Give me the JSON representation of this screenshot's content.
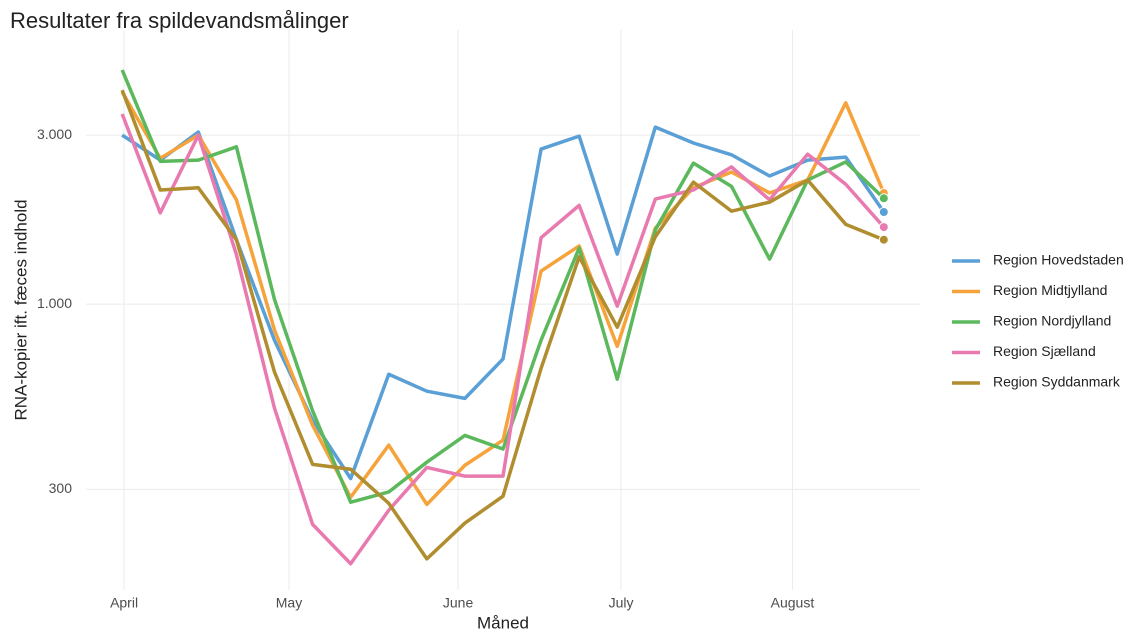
{
  "chart_data": {
    "type": "line",
    "title": "Resultater fra spildevandsmålinger",
    "x_label": "Måned",
    "y_label": "RNA-kopier ift. fæces indhold",
    "x": [
      0,
      1,
      2,
      3,
      4,
      5,
      6,
      7,
      8,
      9,
      10,
      11,
      12,
      13,
      14,
      15,
      16,
      17,
      18,
      19,
      20
    ],
    "xlim": [
      -0.95,
      20.95
    ],
    "xticks": [
      {
        "value": 0.05,
        "label": "April"
      },
      {
        "value": 4.38,
        "label": "May"
      },
      {
        "value": 8.82,
        "label": "June"
      },
      {
        "value": 13.1,
        "label": "July"
      },
      {
        "value": 17.6,
        "label": "August"
      }
    ],
    "ylim": [
      156,
      5940
    ],
    "y_log": true,
    "yticks": [
      300,
      {
        "value": 1000,
        "label": "1.000"
      },
      {
        "value": 3000,
        "label": "3.000"
      }
    ],
    "grid": true,
    "legend_position": "right",
    "end_markers": true,
    "series": [
      {
        "name": "Region Hovedstaden",
        "color": "#5a9fd5",
        "values": [
          3000,
          2550,
          3060,
          1520,
          790,
          470,
          322,
          634,
          568,
          542,
          700,
          2740,
          2980,
          1385,
          3160,
          2850,
          2640,
          2300,
          2550,
          2600,
          1820
        ]
      },
      {
        "name": "Region Midtjylland",
        "color": "#f6a33b",
        "values": [
          3970,
          2580,
          3000,
          1970,
          845,
          455,
          285,
          400,
          272,
          351,
          413,
          1240,
          1460,
          760,
          1640,
          2130,
          2360,
          2060,
          2240,
          3700,
          2060
        ]
      },
      {
        "name": "Region Nordjylland",
        "color": "#5cb85c",
        "values": [
          4580,
          2530,
          2550,
          2780,
          1030,
          500,
          276,
          295,
          358,
          426,
          390,
          791,
          1440,
          614,
          1620,
          2500,
          2150,
          1340,
          2240,
          2520,
          1990
        ]
      },
      {
        "name": "Region Sjælland",
        "color": "#e97aaf",
        "values": [
          3440,
          1810,
          3000,
          1380,
          508,
          239,
          185,
          262,
          346,
          327,
          327,
          1540,
          1900,
          987,
          1980,
          2100,
          2440,
          1970,
          2650,
          2180,
          1650
        ]
      },
      {
        "name": "Region Syddanmark",
        "color": "#b08d2e",
        "values": [
          4020,
          2100,
          2130,
          1520,
          643,
          353,
          342,
          274,
          191,
          241,
          287,
          659,
          1360,
          861,
          1550,
          2210,
          1830,
          1940,
          2240,
          1680,
          1520
        ]
      }
    ]
  }
}
